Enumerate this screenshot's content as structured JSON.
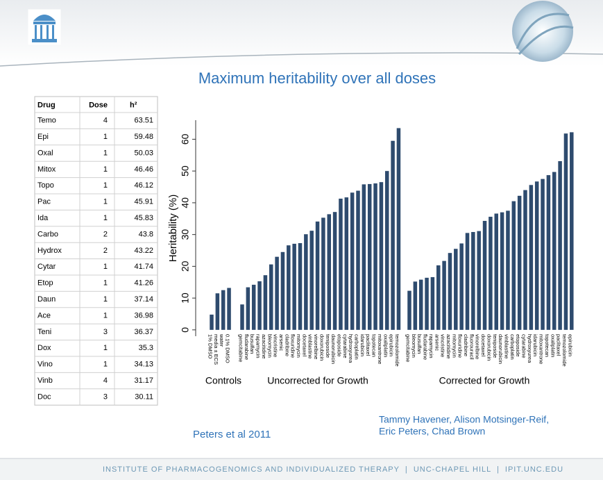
{
  "header": {
    "title": "Maximum heritability over all doses"
  },
  "table": {
    "columns": [
      "Drug",
      "Dose",
      "h²"
    ],
    "rows": [
      [
        "Temo",
        4,
        63.51
      ],
      [
        "Epi",
        1,
        59.48
      ],
      [
        "Oxal",
        1,
        50.03
      ],
      [
        "Mitox",
        1,
        46.46
      ],
      [
        "Topo",
        1,
        46.12
      ],
      [
        "Pac",
        1,
        45.91
      ],
      [
        "Ida",
        1,
        45.83
      ],
      [
        "Carbo",
        2,
        43.8
      ],
      [
        "Hydrox",
        2,
        43.22
      ],
      [
        "Cytar",
        1,
        41.74
      ],
      [
        "Etop",
        1,
        41.26
      ],
      [
        "Daun",
        1,
        37.14
      ],
      [
        "Ace",
        1,
        36.98
      ],
      [
        "Teni",
        3,
        36.37
      ],
      [
        "Dox",
        1,
        35.3
      ],
      [
        "Vino",
        1,
        34.13
      ],
      [
        "Vinb",
        4,
        31.17
      ],
      [
        "Doc",
        3,
        30.11
      ]
    ]
  },
  "chart_data": {
    "type": "bar",
    "y_label": "Heritability (%)",
    "color": "#2e4b6e",
    "ylim": [
      -2,
      66
    ],
    "yticks": [
      0,
      10,
      20,
      30,
      40,
      50,
      60
    ],
    "groups": [
      {
        "name": "Controls",
        "categories": [
          "1% DMSO",
          "media ± ECS",
          "water",
          "0.1% DMSO"
        ],
        "values": [
          4.8,
          11.5,
          12.5,
          13.2
        ]
      },
      {
        "name": "Uncorrected for Growth",
        "categories": [
          "gemcitabine",
          "fludarabine",
          "busulfan",
          "rapamycin",
          "azacitidine",
          "bleomycin",
          "vincristine",
          "arsenic",
          "cladribine",
          "floxuridine",
          "mitomycin",
          "docetaxel",
          "vinblastine",
          "vinorelbine",
          "doxorubicin",
          "teniposide",
          "daunorubicin",
          "etoposide",
          "cytarabine",
          "hydroxyurea",
          "carboplatin",
          "idarubicin",
          "paclitaxel",
          "topotecan",
          "mitoxantrone",
          "oxaliplatin",
          "epirubicin",
          "temozolomide"
        ],
        "values": [
          8.0,
          13.4,
          14.2,
          15.3,
          17.2,
          20.6,
          23.0,
          24.5,
          26.6,
          27.1,
          27.3,
          30.1,
          31.2,
          34.1,
          35.3,
          36.4,
          37.1,
          41.3,
          41.7,
          43.2,
          43.8,
          45.8,
          45.9,
          46.1,
          46.5,
          50.0,
          59.5,
          63.5
        ]
      },
      {
        "name": "Corrected for Growth",
        "categories": [
          "gemcitabine",
          "bleomycin",
          "busulfan",
          "fludarabine",
          "rapamycin",
          "arsenic",
          "vincristine",
          "azacitidine",
          "mitomycin",
          "floxuridine",
          "cladribine",
          "fluorouracil",
          "vinorelbine",
          "docetaxel",
          "doxorubicin",
          "teniposide",
          "daunorubicin",
          "vinblastine",
          "carboplatin",
          "etoposide",
          "cytarabine",
          "hydroxyurea",
          "idarubicin",
          "mitoxantrone",
          "topotecan",
          "oxaliplatin",
          "paclitaxel",
          "temozolomide",
          "epirubicin"
        ],
        "values": [
          12.3,
          15.2,
          15.8,
          16.4,
          16.6,
          20.3,
          21.7,
          24.2,
          25.5,
          27.2,
          30.5,
          30.8,
          31.1,
          34.3,
          35.6,
          36.6,
          37.0,
          37.5,
          40.5,
          42.2,
          44.0,
          45.6,
          46.7,
          47.5,
          48.7,
          49.7,
          53.1,
          61.8,
          62.2
        ]
      }
    ]
  },
  "citation": "Peters et al 2011",
  "authors": [
    "Tammy Havener, Alison Motsinger-Reif,",
    "Eric Peters, Chad Brown"
  ],
  "footer": "INSTITUTE OF PHARMACOGENOMICS AND INDIVIDUALIZED THERAPY  |  UNC-CHAPEL HILL  |  IPIT.UNC.EDU"
}
